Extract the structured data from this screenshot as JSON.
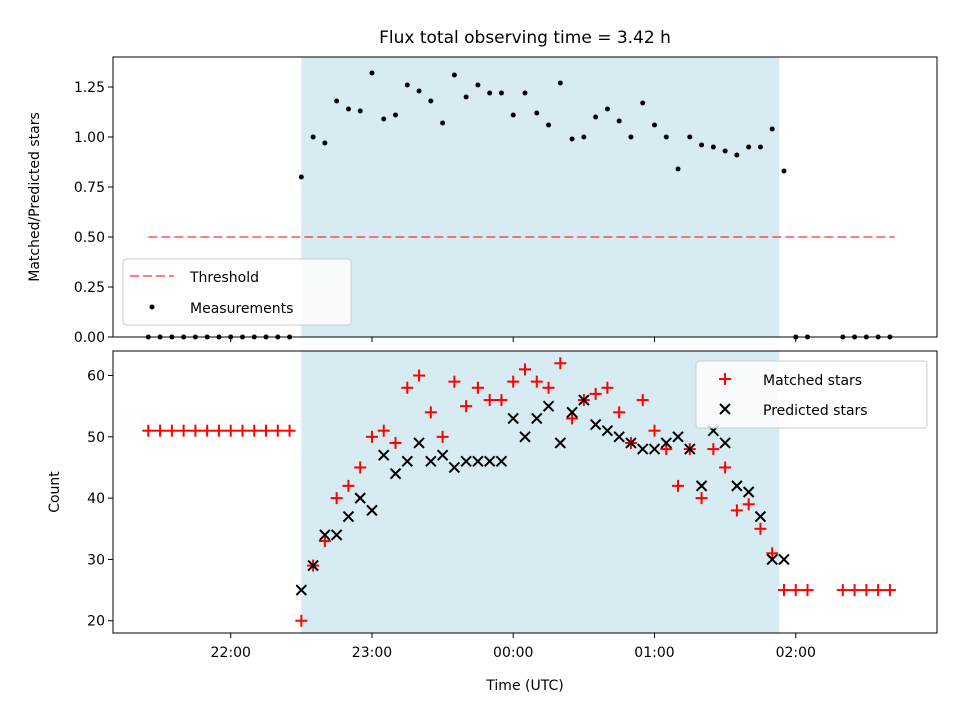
{
  "title": "Flux total observing time = 3.42 h",
  "colors": {
    "shade": "#add8e6",
    "threshold": "#ff0000",
    "measurements": "#000000",
    "matched": "#ff0000",
    "predicted": "#000000"
  },
  "chart_data": [
    {
      "type": "scatter",
      "panel": "top",
      "ylabel": "Matched/Predicted stars",
      "xlabel": "",
      "ylim": [
        0,
        1.4
      ],
      "yticks": [
        "0.00",
        "0.25",
        "0.50",
        "0.75",
        "1.00",
        "1.25"
      ],
      "ytick_values": [
        0,
        0.25,
        0.5,
        0.75,
        1.0,
        1.25
      ],
      "shaded_span_minutes": [
        -90,
        113
      ],
      "legend": {
        "placement": "lower-left",
        "entries": [
          "Threshold",
          "Measurements"
        ]
      },
      "threshold": {
        "name": "Threshold",
        "value": 0.5,
        "x_range_minutes": [
          -155,
          162
        ]
      },
      "series": [
        {
          "name": "Measurements",
          "x_minutes": [
            -155,
            -150,
            -145,
            -140,
            -135,
            -130,
            -125,
            -120,
            -115,
            -110,
            -105,
            -100,
            -95,
            -90,
            -85,
            -80,
            -75,
            -70,
            -65,
            -60,
            -55,
            -50,
            -45,
            -40,
            -35,
            -30,
            -25,
            -20,
            -15,
            -10,
            -5,
            0,
            5,
            10,
            15,
            20,
            25,
            30,
            35,
            40,
            45,
            50,
            55,
            60,
            65,
            70,
            75,
            80,
            85,
            90,
            95,
            100,
            105,
            110,
            115,
            120,
            125,
            140,
            145,
            150,
            155,
            160
          ],
          "y": [
            0,
            0,
            0,
            0,
            0,
            0,
            0,
            0,
            0,
            0,
            0,
            0,
            0,
            0.8,
            1.0,
            0.97,
            1.18,
            1.14,
            1.13,
            1.32,
            1.09,
            1.11,
            1.26,
            1.23,
            1.18,
            1.07,
            1.31,
            1.2,
            1.26,
            1.22,
            1.22,
            1.11,
            1.22,
            1.12,
            1.06,
            1.27,
            0.99,
            1.0,
            1.1,
            1.14,
            1.08,
            1.0,
            1.17,
            1.06,
            1.0,
            0.84,
            1.0,
            0.96,
            0.95,
            0.93,
            0.91,
            0.95,
            0.95,
            1.04,
            0.83,
            0,
            0,
            0,
            0,
            0,
            0,
            0
          ]
        }
      ]
    },
    {
      "type": "scatter",
      "panel": "bottom",
      "ylabel": "Count",
      "xlabel": "Time (UTC)",
      "ylim": [
        18,
        64
      ],
      "yticks": [
        "20",
        "30",
        "40",
        "50",
        "60"
      ],
      "ytick_values": [
        20,
        30,
        40,
        50,
        60
      ],
      "xlim_minutes": [
        -170,
        180
      ],
      "xticks": [
        "22:00",
        "23:00",
        "00:00",
        "01:00",
        "02:00"
      ],
      "xtick_values_minutes": [
        -120,
        -60,
        0,
        60,
        120
      ],
      "shaded_span_minutes": [
        -90,
        113
      ],
      "legend": {
        "placement": "top-right",
        "entries": [
          "Matched stars",
          "Predicted stars"
        ]
      },
      "series": [
        {
          "name": "Matched stars",
          "marker": "+",
          "x_minutes": [
            -155,
            -150,
            -145,
            -140,
            -135,
            -130,
            -125,
            -120,
            -115,
            -110,
            -105,
            -100,
            -95,
            -90,
            -85,
            -80,
            -75,
            -70,
            -65,
            -60,
            -55,
            -50,
            -45,
            -40,
            -35,
            -30,
            -25,
            -20,
            -15,
            -10,
            -5,
            0,
            5,
            10,
            15,
            20,
            25,
            30,
            35,
            40,
            45,
            50,
            55,
            60,
            65,
            70,
            75,
            80,
            85,
            90,
            95,
            100,
            105,
            110,
            115,
            120,
            125,
            140,
            145,
            150,
            155,
            160
          ],
          "y": [
            51,
            51,
            51,
            51,
            51,
            51,
            51,
            51,
            51,
            51,
            51,
            51,
            51,
            20,
            29,
            33,
            40,
            42,
            45,
            50,
            51,
            49,
            58,
            60,
            54,
            50,
            59,
            55,
            58,
            56,
            56,
            59,
            61,
            59,
            58,
            62,
            53,
            56,
            57,
            58,
            54,
            49,
            56,
            51,
            48,
            42,
            48,
            40,
            48,
            45,
            38,
            39,
            35,
            31,
            25,
            25,
            25,
            25,
            25,
            25,
            25,
            25
          ]
        },
        {
          "name": "Predicted stars",
          "marker": "x",
          "x_minutes": [
            -90,
            -85,
            -80,
            -75,
            -70,
            -65,
            -60,
            -55,
            -50,
            -45,
            -40,
            -35,
            -30,
            -25,
            -20,
            -15,
            -10,
            -5,
            0,
            5,
            10,
            15,
            20,
            25,
            30,
            35,
            40,
            45,
            50,
            55,
            60,
            65,
            70,
            75,
            80,
            85,
            90,
            95,
            100,
            105,
            110,
            115
          ],
          "y": [
            25,
            29,
            34,
            34,
            37,
            40,
            38,
            47,
            44,
            46,
            49,
            46,
            47,
            45,
            46,
            46,
            46,
            46,
            53,
            50,
            53,
            55,
            49,
            54,
            56,
            52,
            51,
            50,
            49,
            48,
            48,
            49,
            50,
            48,
            42,
            51,
            49,
            42,
            41,
            37,
            30,
            30
          ]
        }
      ]
    }
  ]
}
